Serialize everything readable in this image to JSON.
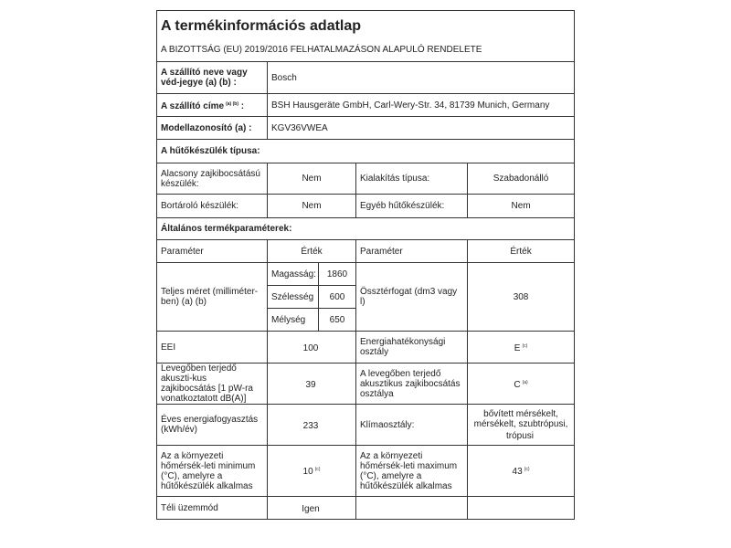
{
  "title": "A termékinformációs adatlap",
  "subtitle": "A BIZOTTSÁG (EU) 2019/2016 FELHATALMAZÁSON ALAPULÓ RENDELETE",
  "supplier": {
    "label": "A szállító neve vagy véd-jegye (a) (b) :",
    "value": "Bosch"
  },
  "address": {
    "label": "A szállító címe",
    "note": "(a) (b)",
    "colon": ":",
    "value": "BSH Hausgeräte GmbH, Carl-Wery-Str. 34, 81739 Munich, Germany"
  },
  "model": {
    "label": "Modellazonosító (a) :",
    "value": "KGV36VWEA"
  },
  "type_section": "A hűtőkészülék típusa:",
  "type_rows": [
    {
      "p1": "Alacsony zajkibocsátású készülék:",
      "v1": "Nem",
      "p2": "Kialakítás típusa:",
      "v2": "Szabadonálló"
    },
    {
      "p1": "Bortároló készülék:",
      "v1": "Nem",
      "p2": "Egyéb hűtőkészülék:",
      "v2": "Nem"
    }
  ],
  "general_section": "Általános termékparaméterek:",
  "headers": {
    "param": "Paraméter",
    "value": "Érték"
  },
  "dimensions": {
    "label": "Teljes méret (milliméter-ben) (a) (b)",
    "height_label": "Magasság:",
    "height": "1860",
    "width_label": "Szélesség",
    "width": "600",
    "depth_label": "Mélység",
    "depth": "650",
    "volume_label": "Össztérfogat (dm3 vagy l)",
    "volume": "308"
  },
  "rows": [
    {
      "p1": "EEI",
      "v1": "100",
      "n1": "",
      "p2": "Energiahatékonysági osztály",
      "v2": "E",
      "n2": "(c)"
    },
    {
      "p1": "Levegőben terjedő akuszti-kus zajkibocsátás [1 pW-ra vonatkoztatott dB(A)]",
      "v1": "39",
      "n1": "",
      "p2": "A levegőben terjedő akusztikus zajkibocsátás osztálya",
      "v2": "C",
      "n2": "(a)"
    },
    {
      "p1": "Éves energiafogyasztás (kWh/év)",
      "v1": "233",
      "n1": "",
      "p2": "Klímaosztály:",
      "v2": "bővített mérsékelt, mérsékelt, szubtrópusi, trópusi",
      "n2": ""
    },
    {
      "p1": "Az a környezeti hőmérsék-leti minimum (°C), amelyre a hűtőkészülék alkalmas",
      "v1": "10",
      "n1": "(c)",
      "p2": "Az a környezeti hőmérsék-leti maximum (°C), amelyre a hűtőkészülék alkalmas",
      "v2": "43",
      "n2": "(c)"
    },
    {
      "p1": "Téli üzemmód",
      "v1": "Igen",
      "n1": "",
      "p2": "",
      "v2": "",
      "n2": ""
    }
  ]
}
